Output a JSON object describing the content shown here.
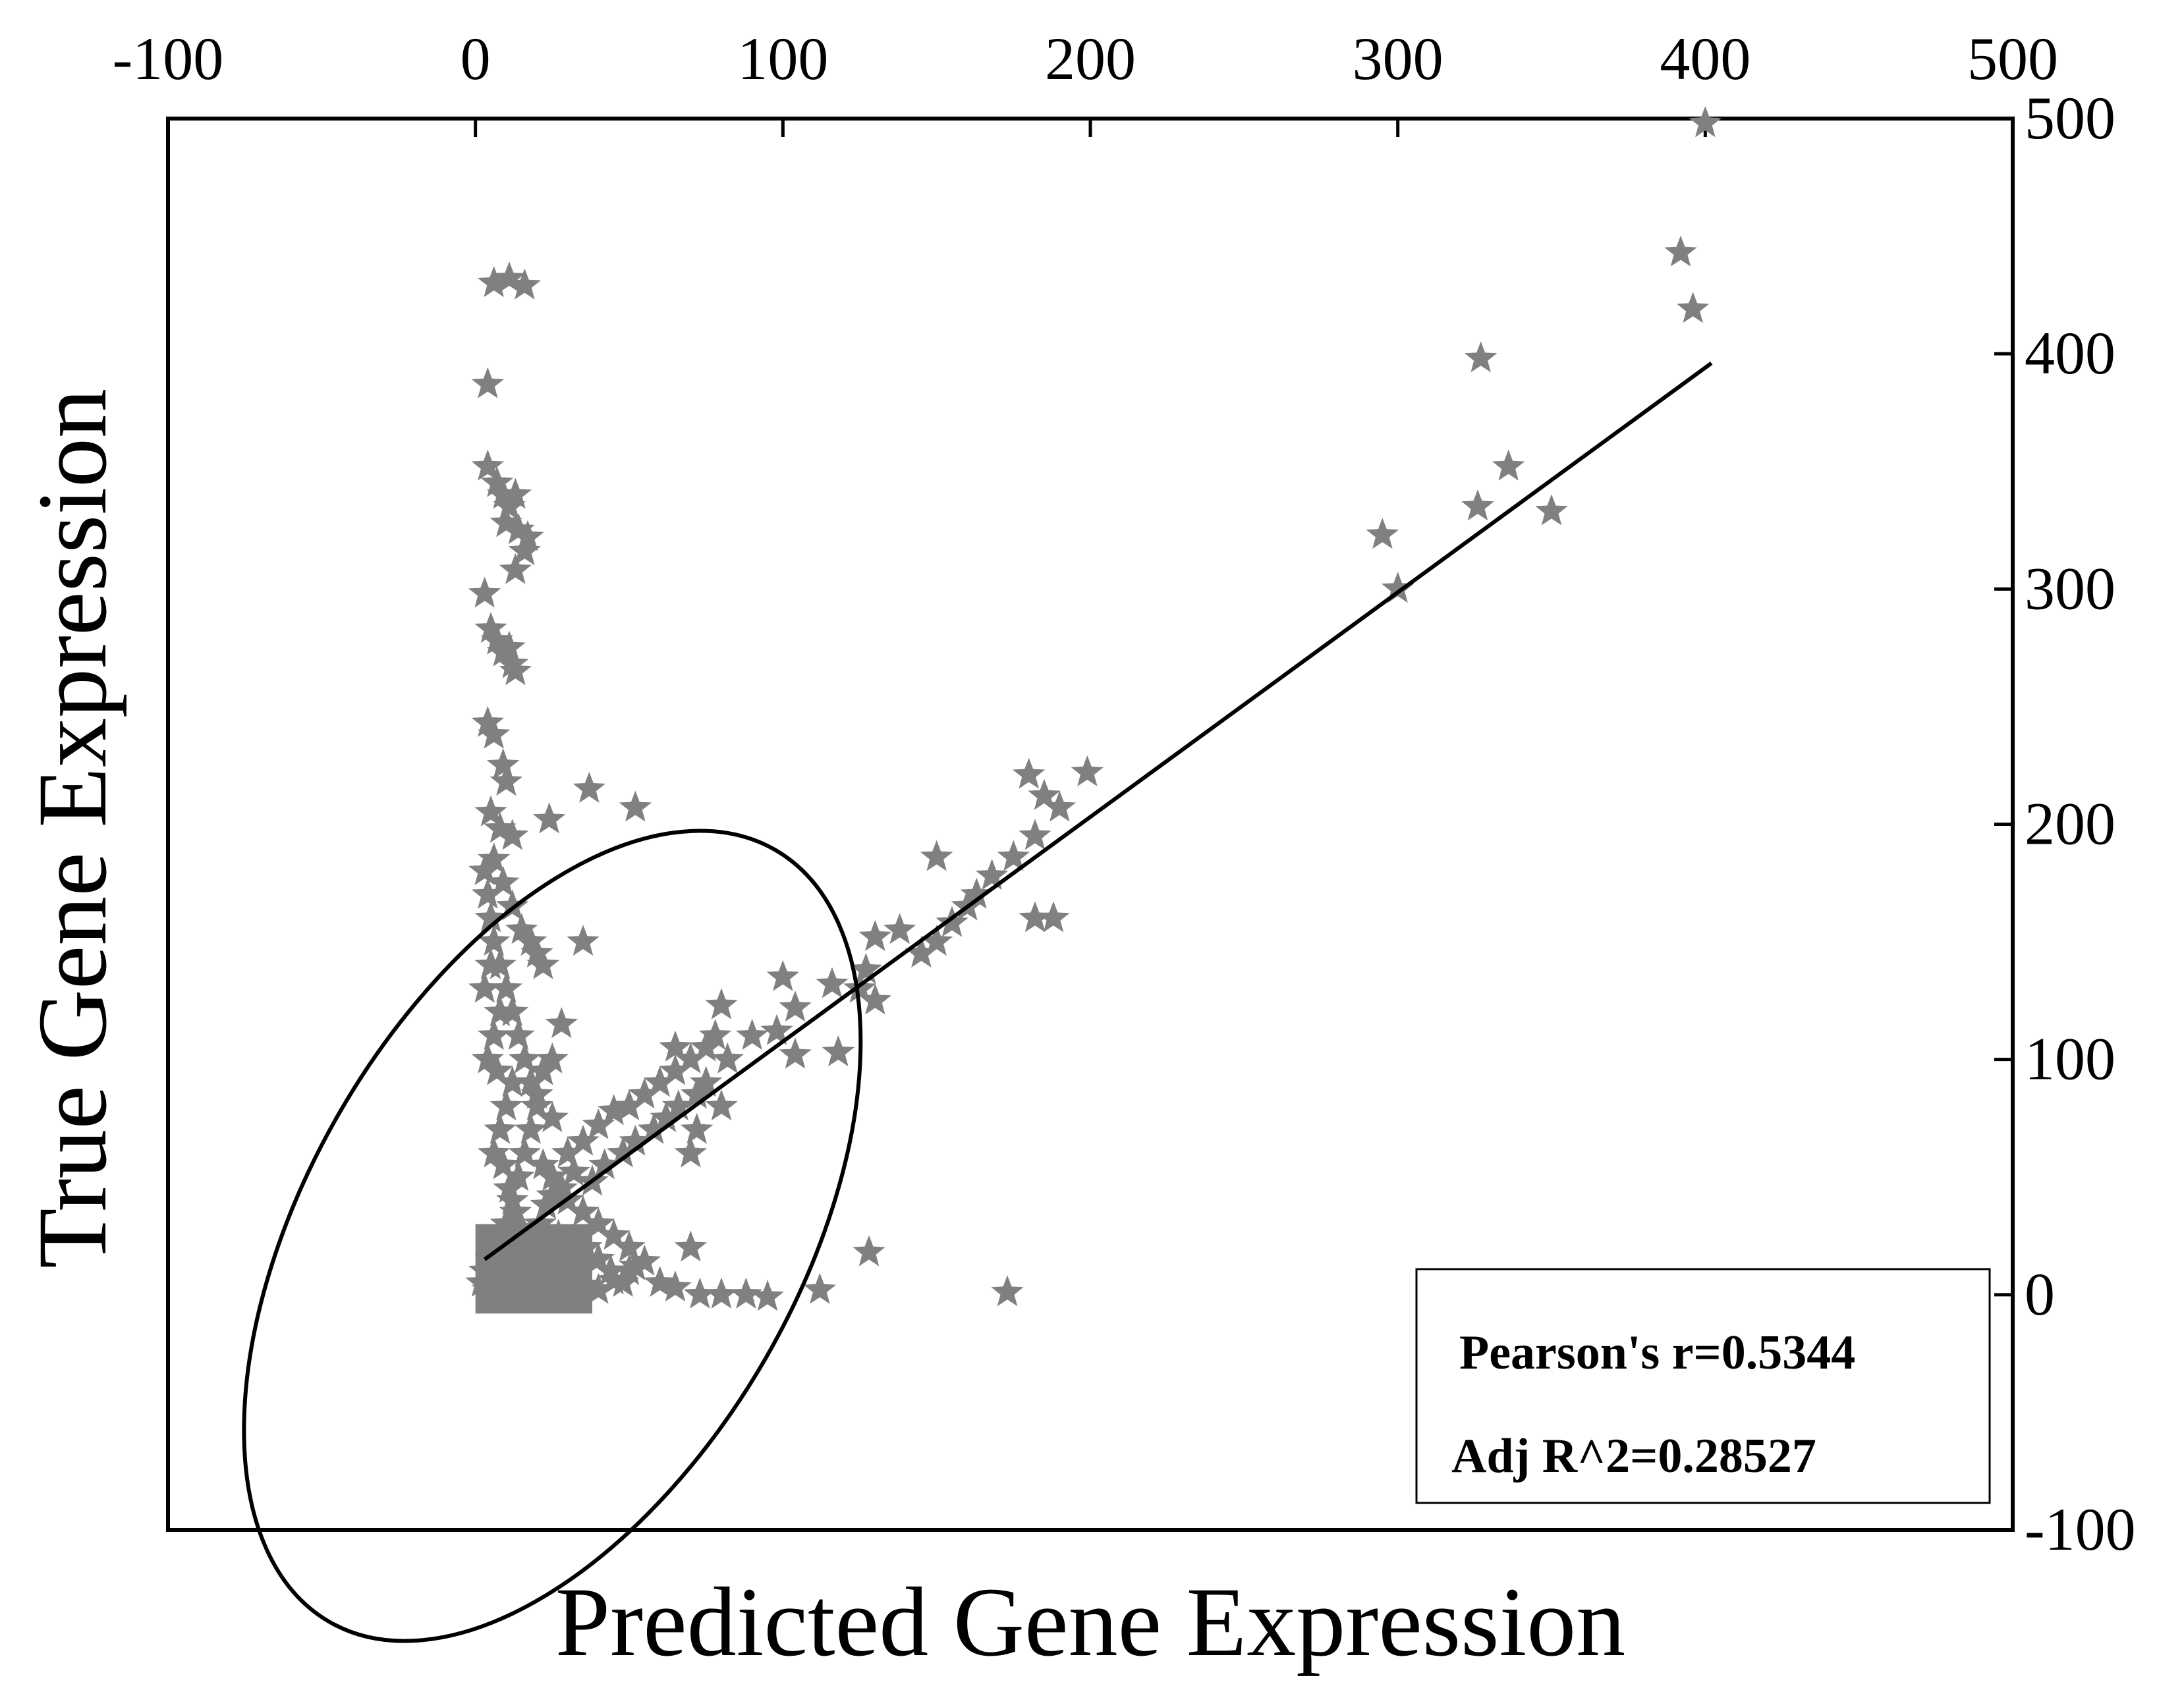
{
  "chart_data": {
    "type": "scatter",
    "title": "",
    "xlabel": "Predicted Gene Expression",
    "ylabel": "True Gene Expression",
    "xlim": [
      -100,
      500
    ],
    "ylim": [
      -100,
      500
    ],
    "x_ticks": [
      "-100",
      "0",
      "100",
      "200",
      "300",
      "400",
      "500"
    ],
    "y_ticks": [
      "500",
      "400",
      "300",
      "200",
      "100",
      "0",
      "-100"
    ],
    "x_axis_position": "top",
    "y_axis_position": "right",
    "grid": false,
    "marker": "star",
    "point_color": "#808080",
    "line_color": "#000000",
    "fit_line": {
      "x": [
        3,
        402
      ],
      "y": [
        15,
        396
      ]
    },
    "ellipse": {
      "center": [
        25,
        25
      ],
      "semi_axes": [
        80,
        145
      ],
      "angle_deg": 30
    },
    "stats_box": {
      "placement": "bottom-right",
      "pearson": "Pearson's r=0.5344",
      "adj_r2": "Adj R^2=0.28527"
    },
    "points": [
      [
        400,
        498
      ],
      [
        392,
        443
      ],
      [
        396,
        419
      ],
      [
        327,
        398
      ],
      [
        336,
        352
      ],
      [
        326,
        335
      ],
      [
        350,
        333
      ],
      [
        295,
        323
      ],
      [
        300,
        300
      ],
      [
        6,
        430
      ],
      [
        11,
        432
      ],
      [
        16,
        429
      ],
      [
        4,
        387
      ],
      [
        4,
        352
      ],
      [
        7,
        345
      ],
      [
        9,
        340
      ],
      [
        11,
        335
      ],
      [
        13,
        340
      ],
      [
        10,
        328
      ],
      [
        14,
        325
      ],
      [
        17,
        322
      ],
      [
        16,
        316
      ],
      [
        13,
        308
      ],
      [
        3,
        298
      ],
      [
        5,
        283
      ],
      [
        7,
        278
      ],
      [
        9,
        273
      ],
      [
        11,
        275
      ],
      [
        12,
        268
      ],
      [
        13,
        265
      ],
      [
        4,
        243
      ],
      [
        6,
        238
      ],
      [
        9,
        225
      ],
      [
        10,
        218
      ],
      [
        37,
        215
      ],
      [
        52,
        207
      ],
      [
        24,
        202
      ],
      [
        5,
        205
      ],
      [
        8,
        198
      ],
      [
        12,
        195
      ],
      [
        180,
        221
      ],
      [
        199,
        222
      ],
      [
        185,
        212
      ],
      [
        190,
        207
      ],
      [
        182,
        195
      ],
      [
        150,
        186
      ],
      [
        175,
        186
      ],
      [
        168,
        178
      ],
      [
        163,
        170
      ],
      [
        160,
        165
      ],
      [
        182,
        160
      ],
      [
        188,
        160
      ],
      [
        155,
        158
      ],
      [
        150,
        150
      ],
      [
        145,
        145
      ],
      [
        138,
        155
      ],
      [
        130,
        152
      ],
      [
        127,
        138
      ],
      [
        125,
        130
      ],
      [
        130,
        125
      ],
      [
        116,
        132
      ],
      [
        100,
        135
      ],
      [
        104,
        122
      ],
      [
        98,
        112
      ],
      [
        90,
        110
      ],
      [
        82,
        100
      ],
      [
        78,
        110
      ],
      [
        75,
        105
      ],
      [
        70,
        100
      ],
      [
        65,
        95
      ],
      [
        80,
        123
      ],
      [
        104,
        102
      ],
      [
        118,
        103
      ],
      [
        60,
        90
      ],
      [
        55,
        85
      ],
      [
        50,
        80
      ],
      [
        45,
        78
      ],
      [
        40,
        72
      ],
      [
        35,
        65
      ],
      [
        30,
        60
      ],
      [
        25,
        75
      ],
      [
        20,
        80
      ],
      [
        18,
        90
      ],
      [
        16,
        100
      ],
      [
        14,
        110
      ],
      [
        12,
        120
      ],
      [
        10,
        130
      ],
      [
        8,
        140
      ],
      [
        6,
        150
      ],
      [
        5,
        160
      ],
      [
        4,
        170
      ],
      [
        3,
        180
      ],
      [
        6,
        185
      ],
      [
        9,
        175
      ],
      [
        12,
        165
      ],
      [
        15,
        155
      ],
      [
        18,
        150
      ],
      [
        20,
        145
      ],
      [
        22,
        140
      ],
      [
        35,
        150
      ],
      [
        28,
        115
      ],
      [
        25,
        100
      ],
      [
        22,
        95
      ],
      [
        20,
        85
      ],
      [
        18,
        70
      ],
      [
        16,
        60
      ],
      [
        14,
        50
      ],
      [
        12,
        40
      ],
      [
        10,
        30
      ],
      [
        8,
        20
      ],
      [
        5,
        15
      ],
      [
        3,
        10
      ],
      [
        2,
        5
      ],
      [
        4,
        2
      ],
      [
        6,
        0
      ],
      [
        10,
        0
      ],
      [
        14,
        2
      ],
      [
        18,
        0
      ],
      [
        22,
        4
      ],
      [
        26,
        2
      ],
      [
        30,
        0
      ],
      [
        35,
        4
      ],
      [
        40,
        2
      ],
      [
        45,
        6
      ],
      [
        50,
        10
      ],
      [
        55,
        14
      ],
      [
        50,
        20
      ],
      [
        45,
        25
      ],
      [
        40,
        30
      ],
      [
        35,
        35
      ],
      [
        30,
        40
      ],
      [
        28,
        45
      ],
      [
        25,
        50
      ],
      [
        22,
        55
      ],
      [
        32,
        52
      ],
      [
        38,
        48
      ],
      [
        42,
        55
      ],
      [
        48,
        60
      ],
      [
        52,
        65
      ],
      [
        58,
        70
      ],
      [
        62,
        75
      ],
      [
        66,
        80
      ],
      [
        72,
        85
      ],
      [
        75,
        90
      ],
      [
        80,
        80
      ],
      [
        72,
        70
      ],
      [
        65,
        105
      ],
      [
        70,
        60
      ],
      [
        60,
        5
      ],
      [
        65,
        3
      ],
      [
        70,
        20
      ],
      [
        73,
        0
      ],
      [
        80,
        0
      ],
      [
        88,
        0
      ],
      [
        95,
        -1
      ],
      [
        112,
        2
      ],
      [
        128,
        18
      ],
      [
        173,
        1
      ],
      [
        12,
        10
      ],
      [
        16,
        25
      ],
      [
        20,
        20
      ],
      [
        24,
        15
      ],
      [
        28,
        8
      ],
      [
        32,
        12
      ],
      [
        36,
        20
      ],
      [
        40,
        15
      ],
      [
        44,
        10
      ],
      [
        48,
        5
      ],
      [
        52,
        12
      ],
      [
        6,
        60
      ],
      [
        8,
        70
      ],
      [
        10,
        80
      ],
      [
        12,
        90
      ],
      [
        4,
        100
      ],
      [
        6,
        110
      ],
      [
        8,
        120
      ],
      [
        3,
        130
      ],
      [
        5,
        140
      ],
      [
        7,
        95
      ],
      [
        9,
        55
      ],
      [
        11,
        45
      ],
      [
        13,
        35
      ],
      [
        15,
        28
      ],
      [
        17,
        18
      ],
      [
        19,
        8
      ],
      [
        21,
        30
      ],
      [
        23,
        38
      ],
      [
        25,
        42
      ],
      [
        27,
        25
      ],
      [
        29,
        18
      ]
    ]
  }
}
